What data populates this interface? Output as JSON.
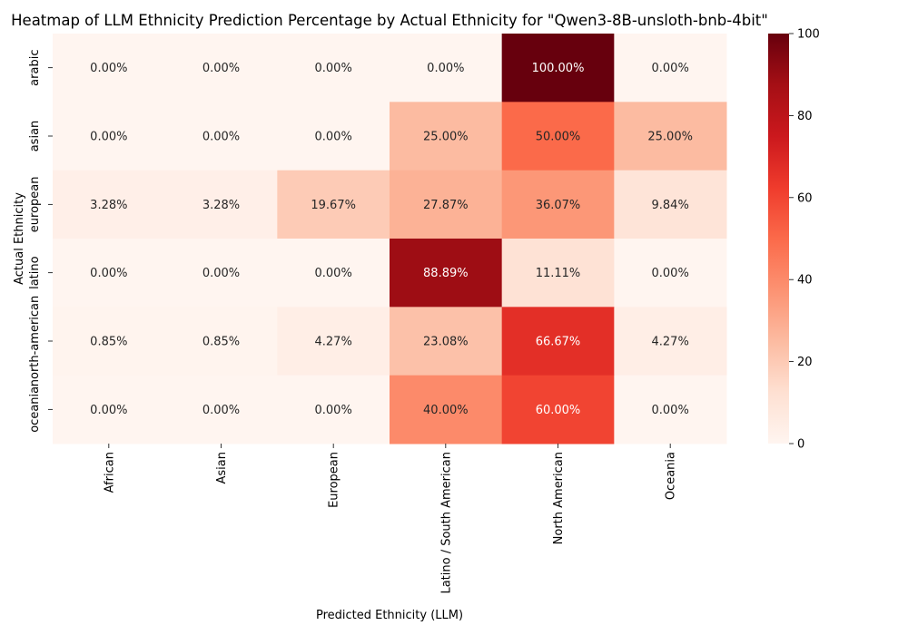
{
  "chart_data": {
    "type": "heatmap",
    "title": "Heatmap of LLM Ethnicity Prediction Percentage by Actual Ethnicity for \"Qwen3-8B-unsloth-bnb-4bit\"",
    "xlabel": "Predicted Ethnicity (LLM)",
    "ylabel": "Actual Ethnicity",
    "x_categories": [
      "African",
      "Asian",
      "European",
      "Latino / South American",
      "North American",
      "Oceania"
    ],
    "y_categories": [
      "arabic",
      "asian",
      "european",
      "latino",
      "north-american",
      "oceania"
    ],
    "values": [
      [
        0.0,
        0.0,
        0.0,
        0.0,
        100.0,
        0.0
      ],
      [
        0.0,
        0.0,
        0.0,
        25.0,
        50.0,
        25.0
      ],
      [
        3.28,
        3.28,
        19.67,
        27.87,
        36.07,
        9.84
      ],
      [
        0.0,
        0.0,
        0.0,
        88.89,
        11.11,
        0.0
      ],
      [
        0.85,
        0.85,
        4.27,
        23.08,
        66.67,
        4.27
      ],
      [
        0.0,
        0.0,
        0.0,
        40.0,
        60.0,
        0.0
      ]
    ],
    "value_format": "percent_2dp",
    "colormap": "Reds",
    "colorbar": {
      "min": 0,
      "max": 100,
      "ticks": [
        0,
        20,
        40,
        60,
        80,
        100
      ]
    }
  }
}
